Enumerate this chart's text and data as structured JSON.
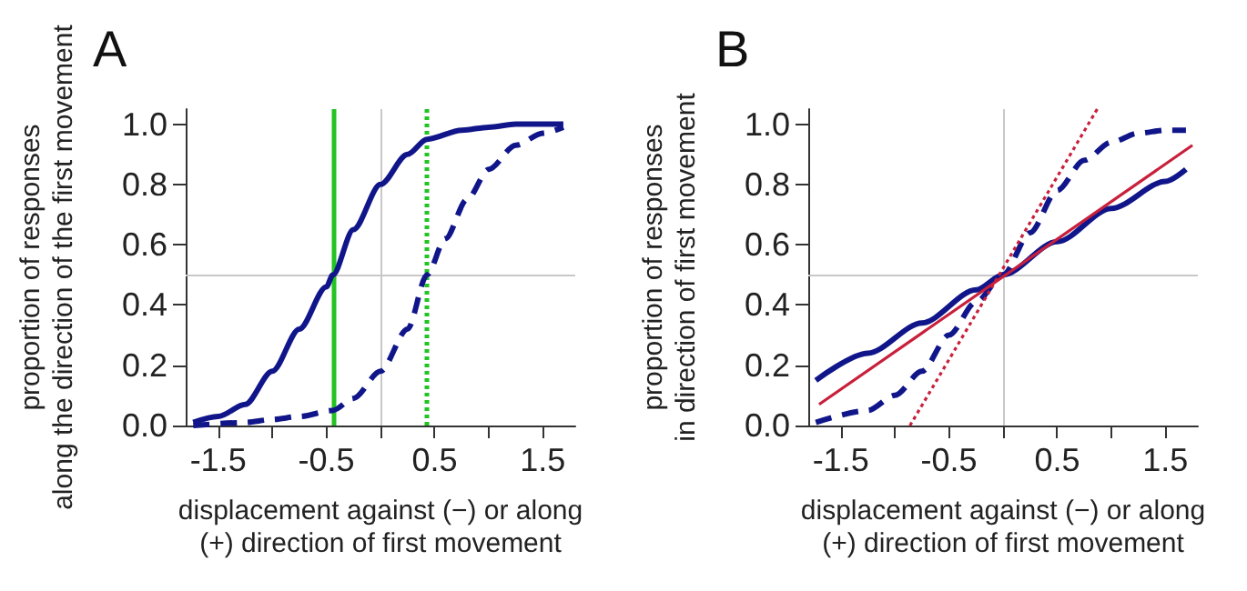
{
  "chart_data": [
    {
      "type": "line",
      "title": "A",
      "ylabel": "proportion of responses\nalong the direction of the first movement",
      "xlabel": "displacement against (−) or along\n(+) direction of first movement",
      "xlim": [
        -1.8,
        1.8
      ],
      "ylim": [
        0,
        1.05
      ],
      "xticks": [
        -1.5,
        {
          "value": -1,
          "label": null
        },
        -0.5,
        {
          "value": 0,
          "label": null
        },
        0.5,
        {
          "value": 1,
          "label": null
        },
        1.5
      ],
      "yticks": [
        {
          "value": 0,
          "label": "0.0"
        },
        {
          "value": 0.2,
          "label": "0.2"
        },
        {
          "value": 0.4,
          "label": "0.4"
        },
        {
          "value": 0.6,
          "label": "0.6"
        },
        {
          "value": 0.8,
          "label": "0.8"
        },
        {
          "value": 1,
          "label": "1.0"
        }
      ],
      "grid": false,
      "marker": "none",
      "series": [
        {
          "color": "#10168a",
          "line_style": "solid",
          "x": [
            -1.73,
            -1.5,
            -1.25,
            -1,
            -0.75,
            -0.5,
            -0.44,
            -0.25,
            0,
            0.25,
            0.43,
            0.75,
            1,
            1.25,
            1.5,
            1.69
          ],
          "values": [
            0.01,
            0.03,
            0.07,
            0.18,
            0.32,
            0.46,
            0.5,
            0.65,
            0.8,
            0.9,
            0.95,
            0.98,
            0.99,
            1,
            1,
            1
          ]
        },
        {
          "color": "#10168a",
          "line_style": "dashed",
          "x": [
            -1.73,
            -1.25,
            -1,
            -0.75,
            -0.44,
            -0.25,
            0,
            0.25,
            0.43,
            0.6,
            0.8,
            1,
            1.25,
            1.5,
            1.69
          ],
          "values": [
            0,
            0.01,
            0.02,
            0.03,
            0.05,
            0.09,
            0.18,
            0.32,
            0.5,
            0.62,
            0.75,
            0.85,
            0.93,
            0.97,
            0.99
          ]
        }
      ],
      "ref_lines": [
        {
          "axis": "x",
          "value": 0,
          "color": "#c8c8c8",
          "line_style": "solid"
        },
        {
          "axis": "y",
          "value": 0.5,
          "color": "#c8c8c8",
          "line_style": "solid"
        },
        {
          "axis": "x",
          "value": -0.44,
          "color": "#22c322",
          "line_style": "solid"
        },
        {
          "axis": "x",
          "value": 0.43,
          "color": "#22c322",
          "line_style": "dotted"
        }
      ]
    },
    {
      "type": "line",
      "title": "B",
      "ylabel": "proportion of responses\nin direction of first movement",
      "xlabel": "displacement against (−) or along\n(+) direction of first movement",
      "xlim": [
        -1.8,
        1.8
      ],
      "ylim": [
        0,
        1.05
      ],
      "xticks": [
        -1.5,
        {
          "value": -1,
          "label": null
        },
        -0.5,
        {
          "value": 0,
          "label": null
        },
        0.5,
        {
          "value": 1,
          "label": null
        },
        1.5
      ],
      "yticks": [
        {
          "value": 0,
          "label": "0.0"
        },
        {
          "value": 0.2,
          "label": "0.2"
        },
        {
          "value": 0.4,
          "label": "0.4"
        },
        {
          "value": 0.6,
          "label": "0.6"
        },
        {
          "value": 0.8,
          "label": "0.8"
        },
        {
          "value": 1,
          "label": "1.0"
        }
      ],
      "grid": false,
      "marker": "none",
      "series": [
        {
          "color": "#10168a",
          "line_style": "solid",
          "x": [
            -1.73,
            -1.25,
            -0.75,
            -0.25,
            0,
            0.5,
            1,
            1.5,
            1.69
          ],
          "values": [
            0.15,
            0.24,
            0.34,
            0.45,
            0.5,
            0.61,
            0.72,
            0.81,
            0.85
          ]
        },
        {
          "color": "#10168a",
          "line_style": "dashed",
          "x": [
            -1.73,
            -1.25,
            -1,
            -0.75,
            -0.5,
            -0.25,
            0,
            0.25,
            0.5,
            0.75,
            1,
            1.25,
            1.5,
            1.69
          ],
          "values": [
            0.01,
            0.05,
            0.1,
            0.18,
            0.3,
            0.41,
            0.5,
            0.64,
            0.78,
            0.88,
            0.94,
            0.97,
            0.98,
            0.98
          ]
        },
        {
          "color": "#c8203c",
          "line_style": "solid",
          "x": [
            -1.7,
            1.75
          ],
          "values": [
            0.07,
            0.93
          ]
        },
        {
          "color": "#c8203c",
          "line_style": "dotted",
          "x": [
            -0.86,
            0.87
          ],
          "values": [
            0,
            1.05
          ]
        }
      ],
      "ref_lines": [
        {
          "axis": "x",
          "value": 0,
          "color": "#c8c8c8",
          "line_style": "solid"
        },
        {
          "axis": "y",
          "value": 0.5,
          "color": "#c8c8c8",
          "line_style": "solid"
        }
      ]
    }
  ]
}
